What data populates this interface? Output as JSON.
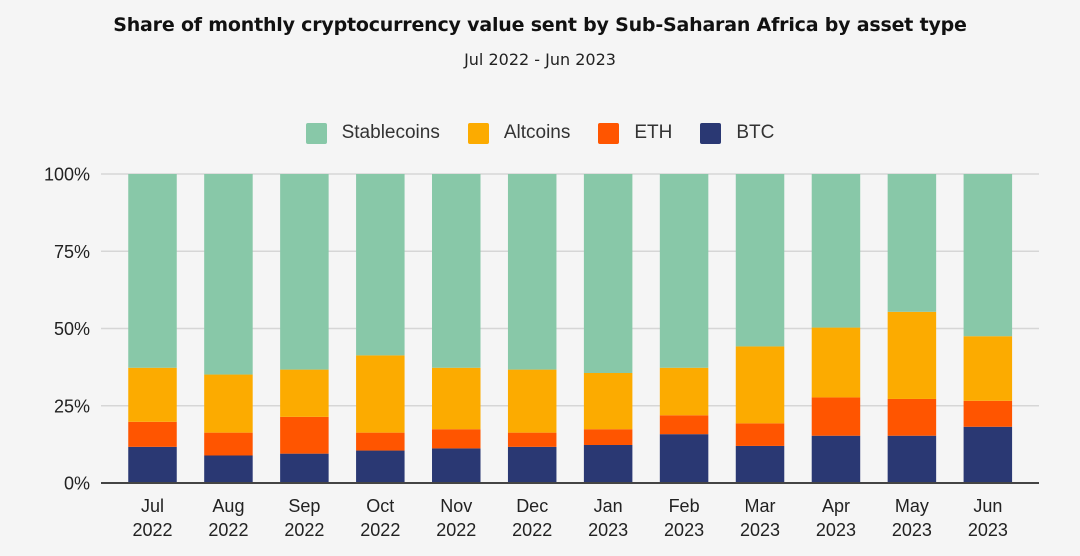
{
  "chart_data": {
    "type": "bar",
    "stacked": true,
    "percent_stacked": true,
    "title": "Share of monthly cryptocurrency value sent by Sub-Saharan Africa by asset type",
    "subtitle": "Jul 2022 - Jun 2023",
    "xlabel": "",
    "ylabel": "",
    "ylim": [
      0,
      100
    ],
    "yticks": [
      0,
      25,
      50,
      75,
      100
    ],
    "ytick_labels": [
      "0%",
      "25%",
      "50%",
      "75%",
      "100%"
    ],
    "grid": true,
    "legend_position": "top-center",
    "categories": [
      [
        "Jul",
        "2022"
      ],
      [
        "Aug",
        "2022"
      ],
      [
        "Sep",
        "2022"
      ],
      [
        "Oct",
        "2022"
      ],
      [
        "Nov",
        "2022"
      ],
      [
        "Dec",
        "2022"
      ],
      [
        "Jan",
        "2023"
      ],
      [
        "Feb",
        "2023"
      ],
      [
        "Mar",
        "2023"
      ],
      [
        "Apr",
        "2023"
      ],
      [
        "May",
        "2023"
      ],
      [
        "Jun",
        "2023"
      ]
    ],
    "legend_order": [
      "Stablecoins",
      "Altcoins",
      "ETH",
      "BTC"
    ],
    "series": [
      {
        "name": "BTC",
        "color": "#2A3873",
        "values": [
          11.7,
          8.9,
          9.5,
          10.5,
          11.2,
          11.7,
          12.3,
          15.8,
          12.0,
          15.3,
          15.3,
          18.2
        ]
      },
      {
        "name": "ETH",
        "color": "#FF5500",
        "values": [
          8.1,
          7.4,
          11.9,
          5.8,
          6.2,
          4.6,
          5.1,
          6.1,
          7.3,
          12.4,
          11.9,
          8.4
        ]
      },
      {
        "name": "Altcoins",
        "color": "#FCAB00",
        "values": [
          17.5,
          18.8,
          15.3,
          25.0,
          19.9,
          20.4,
          18.2,
          15.4,
          24.9,
          22.6,
          28.2,
          20.9
        ]
      },
      {
        "name": "Stablecoins",
        "color": "#88C8A8",
        "values": [
          62.7,
          64.9,
          63.3,
          58.7,
          62.7,
          63.3,
          64.4,
          62.7,
          55.8,
          49.7,
          44.6,
          52.5
        ]
      }
    ]
  },
  "colors": {
    "background": "#F5F5F5",
    "gridline": "#D6D6D6",
    "axis": "#444444"
  }
}
